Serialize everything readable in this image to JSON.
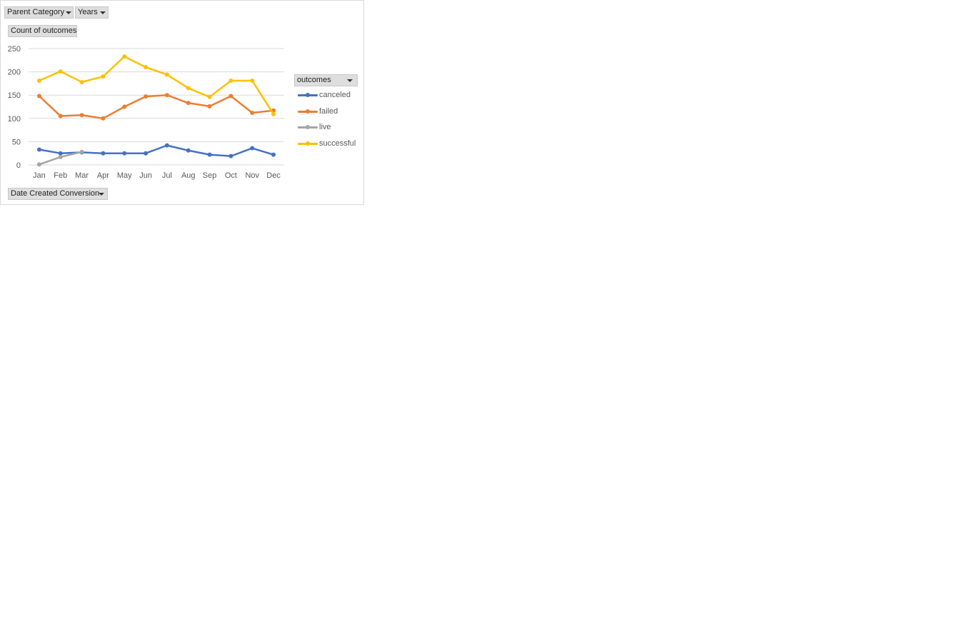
{
  "filters": {
    "parent_category": "Parent Category",
    "years": "Years"
  },
  "value_field": "Count of outcomes",
  "axis_field": "Date Created Conversion",
  "legend_field": "outcomes",
  "colors": {
    "canceled": "#4472c4",
    "failed": "#ed7d31",
    "live": "#a5a5a5",
    "successful": "#ffc000",
    "gridline": "#d9d9d9",
    "axis_text": "#595959"
  },
  "chart_data": {
    "type": "line",
    "title": "",
    "xlabel": "",
    "ylabel": "",
    "categories": [
      "Jan",
      "Feb",
      "Mar",
      "Apr",
      "May",
      "Jun",
      "Jul",
      "Aug",
      "Sep",
      "Oct",
      "Nov",
      "Dec"
    ],
    "ylim": [
      0,
      250
    ],
    "yticks": [
      0,
      50,
      100,
      150,
      200,
      250
    ],
    "grid": true,
    "legend_position": "right",
    "series": [
      {
        "name": "canceled",
        "color": "#4472c4",
        "values": [
          33,
          25,
          27,
          25,
          25,
          25,
          42,
          31,
          22,
          19,
          36,
          22
        ]
      },
      {
        "name": "failed",
        "color": "#ed7d31",
        "values": [
          148,
          105,
          107,
          100,
          125,
          147,
          150,
          133,
          126,
          148,
          112,
          117
        ]
      },
      {
        "name": "live",
        "color": "#a5a5a5",
        "values": [
          1,
          17,
          28,
          null,
          null,
          null,
          null,
          null,
          null,
          null,
          null,
          null
        ]
      },
      {
        "name": "successful",
        "color": "#ffc000",
        "values": [
          181,
          201,
          178,
          190,
          233,
          210,
          194,
          165,
          146,
          181,
          181,
          109
        ]
      }
    ]
  }
}
